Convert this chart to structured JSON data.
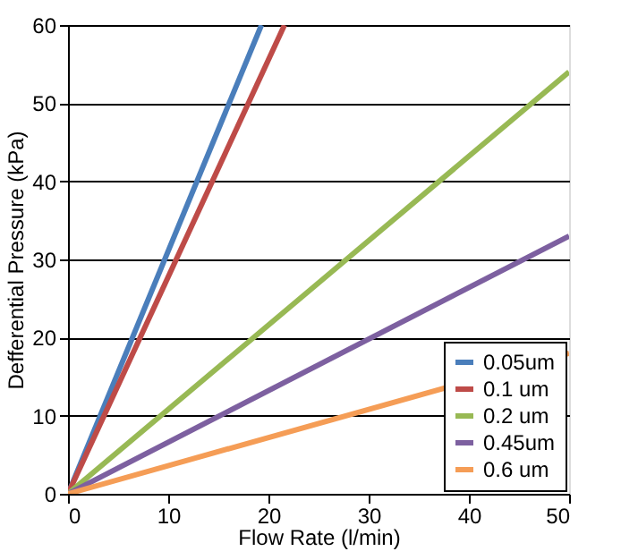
{
  "chart_data": {
    "type": "line",
    "xlabel": "Flow Rate (l/min)",
    "ylabel": "Defferential Pressure (kPa)",
    "xlim": [
      0,
      50
    ],
    "ylim": [
      0,
      60
    ],
    "xticks": [
      0,
      10,
      20,
      30,
      40,
      50
    ],
    "yticks": [
      0,
      10,
      20,
      30,
      40,
      50,
      60
    ],
    "grid": "y",
    "legend": "bottom right",
    "marker": "none",
    "line_style": "solid",
    "series": [
      {
        "name": "0.05um",
        "color": "#4a7ebb",
        "x": [
          0,
          19.3
        ],
        "values": [
          0,
          60
        ]
      },
      {
        "name": "0.1 um",
        "color": "#be4b48",
        "x": [
          0,
          21.6
        ],
        "values": [
          0,
          60
        ]
      },
      {
        "name": "0.2 um",
        "color": "#98b954",
        "x": [
          0,
          50
        ],
        "values": [
          0,
          54
        ]
      },
      {
        "name": "0.45um",
        "color": "#7d60a0",
        "x": [
          0,
          50
        ],
        "values": [
          0,
          33
        ]
      },
      {
        "name": "0.6 um",
        "color": "#f59d56",
        "x": [
          0,
          50
        ],
        "values": [
          0,
          18
        ]
      }
    ]
  }
}
